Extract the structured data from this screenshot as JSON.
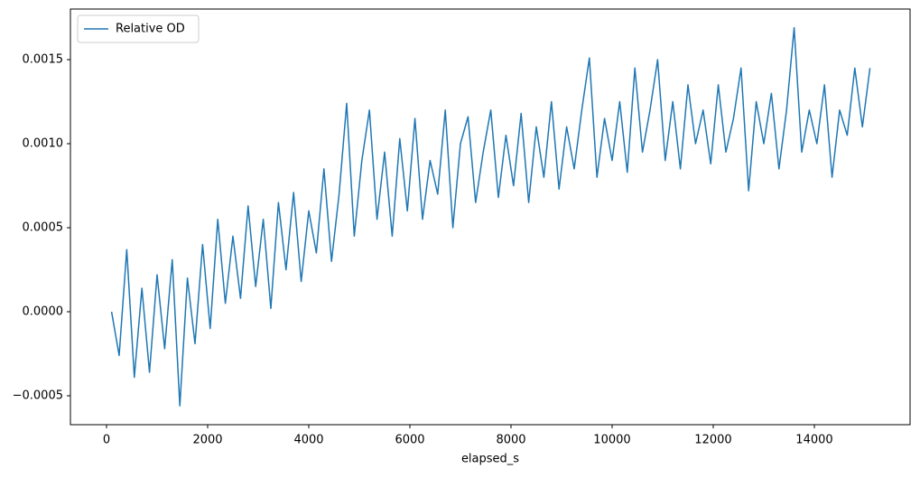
{
  "chart_data": {
    "type": "line",
    "x_label": "elapsed_s",
    "legend": "upper left",
    "grid": false,
    "xlim": [
      -714,
      15893
    ],
    "ylim": [
      -0.000672,
      0.0018011
    ],
    "xticks": [
      0,
      2000,
      4000,
      6000,
      8000,
      10000,
      12000,
      14000
    ],
    "yticks": [
      {
        "value": -0.0005,
        "label": "−0.0005"
      },
      {
        "value": 0,
        "label": "0.0000"
      },
      0.0005,
      {
        "value": 0.001,
        "label": "0.0010"
      },
      0.0015
    ],
    "x": [
      100,
      250,
      400,
      550,
      700,
      850,
      1000,
      1150,
      1300,
      1450,
      1600,
      1750,
      1900,
      2050,
      2200,
      2350,
      2500,
      2650,
      2800,
      2950,
      3100,
      3250,
      3400,
      3550,
      3700,
      3850,
      4000,
      4150,
      4300,
      4450,
      4600,
      4750,
      4900,
      5050,
      5200,
      5350,
      5500,
      5650,
      5800,
      5950,
      6100,
      6250,
      6400,
      6550,
      6700,
      6850,
      7000,
      7150,
      7300,
      7450,
      7600,
      7750,
      7900,
      8050,
      8200,
      8350,
      8500,
      8650,
      8800,
      8950,
      9100,
      9250,
      9400,
      9550,
      9700,
      9850,
      10000,
      10150,
      10300,
      10450,
      10600,
      10750,
      10900,
      11050,
      11200,
      11350,
      11500,
      11650,
      11800,
      11950,
      12100,
      12250,
      12400,
      12550,
      12700,
      12850,
      13000,
      13150,
      13300,
      13450,
      13600,
      13750,
      13900,
      14050,
      14200,
      14350,
      14500,
      14650,
      14800,
      14950,
      15100
    ],
    "series": [
      {
        "name": "Relative OD",
        "color": "#1f77b4",
        "values": [
          0.0,
          -0.00026,
          0.00037,
          -0.00039,
          0.00014,
          -0.00036,
          0.00022,
          -0.00022,
          0.00031,
          -0.00056,
          0.0002,
          -0.00019,
          0.0004,
          -0.0001,
          0.00055,
          5e-05,
          0.00045,
          8e-05,
          0.00063,
          0.00015,
          0.00055,
          2e-05,
          0.00065,
          0.00025,
          0.00071,
          0.00018,
          0.0006,
          0.00035,
          0.00085,
          0.0003,
          0.0007,
          0.00124,
          0.00045,
          0.0009,
          0.0012,
          0.00055,
          0.00095,
          0.00045,
          0.00103,
          0.0006,
          0.00115,
          0.00055,
          0.0009,
          0.0007,
          0.0012,
          0.0005,
          0.001,
          0.00116,
          0.00065,
          0.00095,
          0.0012,
          0.00068,
          0.00105,
          0.00075,
          0.00118,
          0.00065,
          0.0011,
          0.0008,
          0.00125,
          0.00073,
          0.0011,
          0.00085,
          0.0012,
          0.00151,
          0.0008,
          0.00115,
          0.0009,
          0.00125,
          0.00083,
          0.00145,
          0.00095,
          0.0012,
          0.0015,
          0.0009,
          0.00125,
          0.00085,
          0.00135,
          0.001,
          0.0012,
          0.00088,
          0.00135,
          0.00095,
          0.00115,
          0.00145,
          0.00072,
          0.00125,
          0.001,
          0.0013,
          0.00085,
          0.0012,
          0.00169,
          0.00095,
          0.0012,
          0.001,
          0.00135,
          0.0008,
          0.0012,
          0.00105,
          0.00145,
          0.0011,
          0.00145
        ]
      }
    ]
  }
}
